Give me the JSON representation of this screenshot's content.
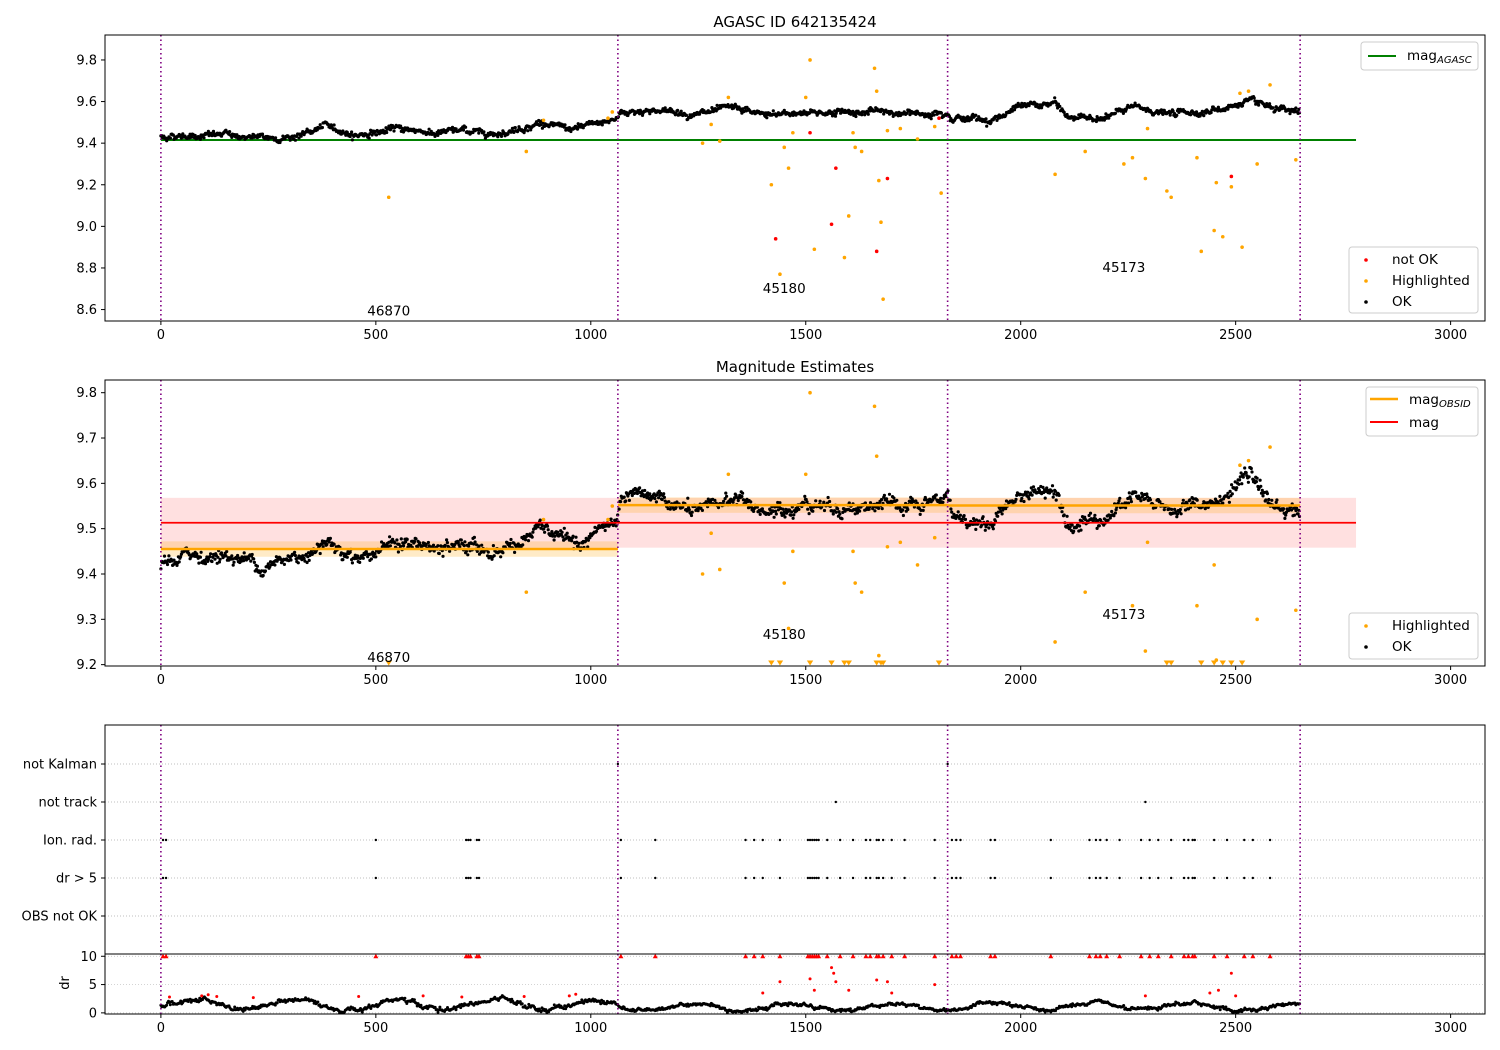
{
  "chart_data": [
    {
      "type": "scatter",
      "title": "AGASC ID 642135424",
      "xlim": [
        -130,
        3080
      ],
      "ylim": [
        8.545,
        9.92
      ],
      "xticks": [
        0,
        500,
        1000,
        1500,
        2000,
        2500,
        3000
      ],
      "yticks": [
        8.6,
        8.8,
        9.0,
        9.2,
        9.4,
        9.6,
        9.8
      ],
      "obs_boundaries": [
        0,
        1063,
        1830,
        2650
      ],
      "obsid_labels": [
        {
          "text": "46870",
          "x": 530,
          "y": 8.59
        },
        {
          "text": "45180",
          "x": 1450,
          "y": 8.7
        },
        {
          "text": "45173",
          "x": 2240,
          "y": 8.8
        }
      ],
      "hlines": [
        {
          "name": "mag$_{AGASC}$",
          "legend": "mag",
          "sub": "AGASC",
          "y": 9.415,
          "x0": 0,
          "x1": 2780,
          "color": "#008000"
        }
      ],
      "series": [
        {
          "name": "not OK",
          "color": "#ff0000"
        },
        {
          "name": "Highlighted",
          "color": "#ffa500"
        },
        {
          "name": "OK",
          "color": "#000000"
        }
      ],
      "ok_trend": [
        [
          0,
          9.43
        ],
        [
          60,
          9.44
        ],
        [
          150,
          9.44
        ],
        [
          250,
          9.42
        ],
        [
          330,
          9.44
        ],
        [
          380,
          9.48
        ],
        [
          450,
          9.44
        ],
        [
          560,
          9.47
        ],
        [
          640,
          9.45
        ],
        [
          700,
          9.46
        ],
        [
          770,
          9.45
        ],
        [
          830,
          9.47
        ],
        [
          880,
          9.5
        ],
        [
          960,
          9.46
        ],
        [
          1063,
          9.52
        ],
        [
          1070,
          9.55
        ],
        [
          1150,
          9.56
        ],
        [
          1250,
          9.54
        ],
        [
          1330,
          9.56
        ],
        [
          1420,
          9.53
        ],
        [
          1500,
          9.55
        ],
        [
          1580,
          9.55
        ],
        [
          1660,
          9.55
        ],
        [
          1760,
          9.54
        ],
        [
          1830,
          9.56
        ],
        [
          1840,
          9.53
        ],
        [
          1930,
          9.51
        ],
        [
          1990,
          9.57
        ],
        [
          2080,
          9.59
        ],
        [
          2110,
          9.52
        ],
        [
          2200,
          9.53
        ],
        [
          2260,
          9.57
        ],
        [
          2350,
          9.54
        ],
        [
          2460,
          9.56
        ],
        [
          2530,
          9.6
        ],
        [
          2590,
          9.55
        ],
        [
          2650,
          9.54
        ]
      ],
      "highlighted_points": [
        [
          530,
          9.14
        ],
        [
          850,
          9.36
        ],
        [
          890,
          9.51
        ],
        [
          1040,
          9.52
        ],
        [
          1050,
          9.55
        ],
        [
          1260,
          9.4
        ],
        [
          1280,
          9.49
        ],
        [
          1300,
          9.41
        ],
        [
          1320,
          9.62
        ],
        [
          1420,
          9.2
        ],
        [
          1440,
          8.77
        ],
        [
          1450,
          9.38
        ],
        [
          1460,
          9.28
        ],
        [
          1470,
          9.45
        ],
        [
          1500,
          9.62
        ],
        [
          1510,
          9.8
        ],
        [
          1520,
          8.89
        ],
        [
          1590,
          8.85
        ],
        [
          1600,
          9.05
        ],
        [
          1610,
          9.45
        ],
        [
          1615,
          9.38
        ],
        [
          1630,
          9.36
        ],
        [
          1660,
          9.76
        ],
        [
          1665,
          9.65
        ],
        [
          1670,
          9.22
        ],
        [
          1675,
          9.02
        ],
        [
          1680,
          8.65
        ],
        [
          1690,
          9.46
        ],
        [
          1720,
          9.47
        ],
        [
          1760,
          9.42
        ],
        [
          1800,
          9.48
        ],
        [
          1815,
          9.16
        ],
        [
          2080,
          9.25
        ],
        [
          2150,
          9.36
        ],
        [
          2240,
          9.3
        ],
        [
          2260,
          9.33
        ],
        [
          2290,
          9.23
        ],
        [
          2295,
          9.47
        ],
        [
          2340,
          9.17
        ],
        [
          2350,
          9.14
        ],
        [
          2410,
          9.33
        ],
        [
          2420,
          8.88
        ],
        [
          2450,
          8.98
        ],
        [
          2455,
          9.21
        ],
        [
          2470,
          8.95
        ],
        [
          2490,
          9.19
        ],
        [
          2510,
          9.64
        ],
        [
          2515,
          8.9
        ],
        [
          2530,
          9.65
        ],
        [
          2550,
          9.3
        ],
        [
          2580,
          9.68
        ],
        [
          2640,
          9.32
        ]
      ],
      "not_ok_points": [
        [
          1430,
          8.94
        ],
        [
          1510,
          9.45
        ],
        [
          1560,
          9.01
        ],
        [
          1570,
          9.28
        ],
        [
          1665,
          8.88
        ],
        [
          1690,
          9.23
        ],
        [
          1810,
          9.52
        ],
        [
          2490,
          9.24
        ]
      ]
    },
    {
      "type": "scatter",
      "title": "Magnitude Estimates",
      "xlim": [
        -130,
        3080
      ],
      "ylim": [
        9.197,
        9.828
      ],
      "xticks": [
        0,
        500,
        1000,
        1500,
        2000,
        2500,
        3000
      ],
      "yticks": [
        9.2,
        9.3,
        9.4,
        9.5,
        9.6,
        9.7,
        9.8
      ],
      "obs_boundaries": [
        0,
        1063,
        1830,
        2650
      ],
      "obsid_labels": [
        {
          "text": "46870",
          "x": 530,
          "y": 9.215
        },
        {
          "text": "45180",
          "x": 1450,
          "y": 9.265
        },
        {
          "text": "45173",
          "x": 2240,
          "y": 9.31
        }
      ],
      "mag": {
        "name": "mag",
        "value": 9.513,
        "band": [
          9.458,
          9.568
        ],
        "x0": 0,
        "x1": 2780,
        "color": "#ff0000"
      },
      "mag_obsid": [
        {
          "x0": 0,
          "x1": 1063,
          "value": 9.455,
          "band": [
            9.438,
            9.472
          ]
        },
        {
          "x0": 1063,
          "x1": 1830,
          "value": 9.552,
          "band": [
            9.535,
            9.569
          ]
        },
        {
          "x0": 1830,
          "x1": 2650,
          "value": 9.551,
          "band": [
            9.534,
            9.568
          ]
        }
      ],
      "mag_obsid_name": "mag$_{OBSID}$",
      "mag_obsid_legend": "mag",
      "mag_obsid_sub": "OBSID",
      "series": [
        {
          "name": "Highlighted",
          "color": "#ffa500"
        },
        {
          "name": "OK",
          "color": "#000000"
        }
      ],
      "ok_trend": [
        [
          0,
          9.42
        ],
        [
          60,
          9.44
        ],
        [
          150,
          9.44
        ],
        [
          250,
          9.42
        ],
        [
          330,
          9.44
        ],
        [
          380,
          9.48
        ],
        [
          450,
          9.44
        ],
        [
          560,
          9.47
        ],
        [
          640,
          9.45
        ],
        [
          700,
          9.46
        ],
        [
          770,
          9.45
        ],
        [
          830,
          9.47
        ],
        [
          880,
          9.5
        ],
        [
          960,
          9.46
        ],
        [
          1063,
          9.52
        ],
        [
          1070,
          9.55
        ],
        [
          1150,
          9.57
        ],
        [
          1250,
          9.53
        ],
        [
          1330,
          9.57
        ],
        [
          1420,
          9.53
        ],
        [
          1500,
          9.56
        ],
        [
          1580,
          9.55
        ],
        [
          1660,
          9.55
        ],
        [
          1760,
          9.54
        ],
        [
          1830,
          9.57
        ],
        [
          1840,
          9.53
        ],
        [
          1930,
          9.51
        ],
        [
          1990,
          9.57
        ],
        [
          2080,
          9.59
        ],
        [
          2110,
          9.52
        ],
        [
          2200,
          9.53
        ],
        [
          2260,
          9.57
        ],
        [
          2350,
          9.54
        ],
        [
          2460,
          9.56
        ],
        [
          2530,
          9.61
        ],
        [
          2590,
          9.55
        ],
        [
          2650,
          9.54
        ]
      ],
      "highlighted_points": [
        [
          850,
          9.36
        ],
        [
          890,
          9.52
        ],
        [
          1040,
          9.52
        ],
        [
          1050,
          9.55
        ],
        [
          1260,
          9.4
        ],
        [
          1280,
          9.49
        ],
        [
          1300,
          9.41
        ],
        [
          1320,
          9.62
        ],
        [
          1450,
          9.38
        ],
        [
          1460,
          9.28
        ],
        [
          1470,
          9.45
        ],
        [
          1500,
          9.62
        ],
        [
          1510,
          9.8
        ],
        [
          1610,
          9.45
        ],
        [
          1615,
          9.38
        ],
        [
          1630,
          9.36
        ],
        [
          1660,
          9.77
        ],
        [
          1665,
          9.66
        ],
        [
          1670,
          9.22
        ],
        [
          1690,
          9.46
        ],
        [
          1720,
          9.47
        ],
        [
          1760,
          9.42
        ],
        [
          1800,
          9.48
        ],
        [
          2080,
          9.25
        ],
        [
          2150,
          9.36
        ],
        [
          2260,
          9.33
        ],
        [
          2290,
          9.23
        ],
        [
          2295,
          9.47
        ],
        [
          2410,
          9.33
        ],
        [
          2450,
          9.42
        ],
        [
          2455,
          9.21
        ],
        [
          2510,
          9.64
        ],
        [
          2530,
          9.65
        ],
        [
          2550,
          9.3
        ],
        [
          2580,
          9.68
        ],
        [
          2640,
          9.32
        ]
      ],
      "below_range_markers": [
        530,
        1420,
        1440,
        1510,
        1560,
        1590,
        1600,
        1665,
        1675,
        1680,
        1810,
        2340,
        2350,
        2420,
        2450,
        2470,
        2490,
        2515
      ]
    },
    {
      "type": "scatter",
      "title": "",
      "xlim": [
        -130,
        3080
      ],
      "obs_boundaries": [
        0,
        1063,
        1830,
        2650
      ],
      "flag_rows": [
        "not Kalman",
        "not track",
        "Ion. rad.",
        "dr > 5",
        "OBS not OK"
      ],
      "flag_points": {
        "not Kalman": [
          1063,
          1830
        ],
        "not track": [
          1570,
          2290
        ],
        "Ion. rad.": [
          5,
          12,
          500,
          710,
          715,
          720,
          735,
          740,
          1070,
          1150,
          1360,
          1380,
          1400,
          1440,
          1505,
          1510,
          1515,
          1520,
          1525,
          1530,
          1550,
          1580,
          1610,
          1640,
          1650,
          1665,
          1670,
          1680,
          1700,
          1730,
          1800,
          1840,
          1850,
          1860,
          1930,
          1940,
          2070,
          2160,
          2175,
          2185,
          2200,
          2230,
          2280,
          2300,
          2320,
          2350,
          2380,
          2390,
          2400,
          2405,
          2450,
          2480,
          2520,
          2540,
          2580
        ],
        "dr > 5": [
          5,
          12,
          500,
          710,
          715,
          720,
          735,
          740,
          1070,
          1150,
          1360,
          1380,
          1400,
          1440,
          1505,
          1510,
          1515,
          1520,
          1525,
          1530,
          1550,
          1580,
          1610,
          1640,
          1650,
          1665,
          1670,
          1680,
          1700,
          1730,
          1800,
          1840,
          1850,
          1860,
          1930,
          1940,
          2070,
          2160,
          2175,
          2185,
          2200,
          2230,
          2280,
          2300,
          2320,
          2350,
          2380,
          2390,
          2400,
          2405,
          2450,
          2480,
          2520,
          2540,
          2580
        ],
        "OBS not OK": []
      }
    },
    {
      "type": "scatter",
      "title": "",
      "ylabel": "dr",
      "xlim": [
        -130,
        3080
      ],
      "ylim": [
        -0.2,
        10.4
      ],
      "xticks": [
        0,
        500,
        1000,
        1500,
        2000,
        2500,
        3000
      ],
      "yticks": [
        0,
        5,
        10
      ],
      "obs_boundaries": [
        0,
        1063,
        1830,
        2650
      ],
      "clip_value": 10,
      "red_clipped_x": [
        5,
        12,
        500,
        710,
        715,
        720,
        735,
        740,
        1070,
        1150,
        1360,
        1380,
        1400,
        1440,
        1505,
        1510,
        1515,
        1520,
        1525,
        1530,
        1550,
        1580,
        1610,
        1640,
        1650,
        1665,
        1670,
        1680,
        1700,
        1730,
        1800,
        1840,
        1850,
        1860,
        1930,
        1940,
        2070,
        2160,
        2175,
        2185,
        2200,
        2230,
        2280,
        2300,
        2320,
        2350,
        2380,
        2390,
        2400,
        2405,
        2450,
        2480,
        2520,
        2540,
        2580
      ],
      "red_points": [
        [
          20,
          2.8
        ],
        [
          95,
          3.0
        ],
        [
          110,
          3.2
        ],
        [
          130,
          2.9
        ],
        [
          215,
          2.7
        ],
        [
          460,
          2.9
        ],
        [
          610,
          3.0
        ],
        [
          700,
          2.8
        ],
        [
          845,
          2.9
        ],
        [
          950,
          3.0
        ],
        [
          965,
          3.3
        ],
        [
          1400,
          3.5
        ],
        [
          1440,
          5.5
        ],
        [
          1510,
          6.0
        ],
        [
          1520,
          4.0
        ],
        [
          1560,
          8.0
        ],
        [
          1565,
          7.0
        ],
        [
          1570,
          5.5
        ],
        [
          1600,
          4.0
        ],
        [
          1665,
          5.8
        ],
        [
          1690,
          5.5
        ],
        [
          1700,
          3.5
        ],
        [
          1800,
          5.0
        ],
        [
          2290,
          3.0
        ],
        [
          2440,
          3.5
        ],
        [
          2460,
          4.0
        ],
        [
          2490,
          7.0
        ],
        [
          2500,
          3.0
        ]
      ]
    }
  ]
}
